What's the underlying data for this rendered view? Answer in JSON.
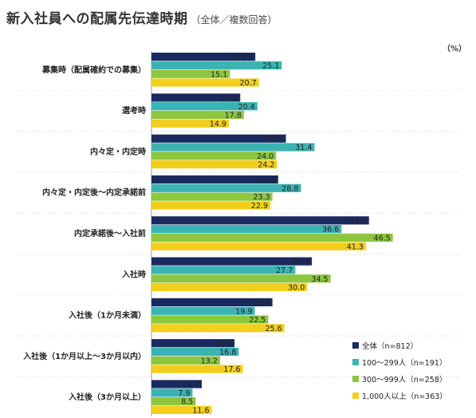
{
  "header": {
    "title": "新入社員への配属先伝達時期",
    "subtitle": "（全体／複数回答）",
    "unit": "（%）"
  },
  "chart_data": {
    "type": "bar",
    "orientation": "horizontal",
    "title": "新入社員への配属先伝達時期",
    "subtitle": "（全体／複数回答）",
    "unit": "（%）",
    "xlim": [
      0,
      50
    ],
    "grid": false,
    "legend_position": "bottom-right",
    "categories": [
      "募集時（配属確約での募集）",
      "選考時",
      "内々定・内定時",
      "内々定・内定後～内定承諾前",
      "内定承諾後～入社前",
      "入社時",
      "入社後（1か月未満）",
      "入社後（1か月以上～3か月以内）",
      "入社後（3か月以上）"
    ],
    "series": [
      {
        "name": "全体（n=812）",
        "color": "#1a2a5e",
        "values": [
          20.0,
          17.1,
          25.9,
          24.4,
          41.9,
          30.9,
          23.3,
          16.0,
          9.7
        ],
        "labels": [
          "20.0",
          "17.1",
          "25.9",
          "24.4",
          "41.9",
          "30.9",
          "23.3",
          "16.0",
          "9.7"
        ]
      },
      {
        "name": "100～299人（n=191）",
        "color": "#3bb3b2",
        "values": [
          25.1,
          20.4,
          31.4,
          28.8,
          36.6,
          27.7,
          19.9,
          16.8,
          7.9
        ],
        "labels": [
          "25.1",
          "20.4",
          "31.4",
          "28.8",
          "36.6",
          "27.7",
          "19.9",
          "16.8",
          "7.9"
        ]
      },
      {
        "name": "300～999人（n=258）",
        "color": "#8dc63f",
        "values": [
          15.1,
          17.8,
          24.0,
          23.3,
          46.5,
          34.5,
          22.5,
          13.2,
          8.5
        ],
        "labels": [
          "15.1",
          "17.8",
          "24.0",
          "23.3",
          "46.5",
          "34.5",
          "22.5",
          "13.2",
          "8.5"
        ]
      },
      {
        "name": "1,000人以上（n=363）",
        "color": "#f2cf1d",
        "values": [
          20.7,
          14.9,
          24.2,
          22.9,
          41.3,
          30.0,
          25.6,
          17.6,
          11.6
        ],
        "labels": [
          "20.7",
          "14.9",
          "24.2",
          "22.9",
          "41.3",
          "30.0",
          "25.6",
          "17.6",
          "11.6"
        ]
      }
    ]
  }
}
